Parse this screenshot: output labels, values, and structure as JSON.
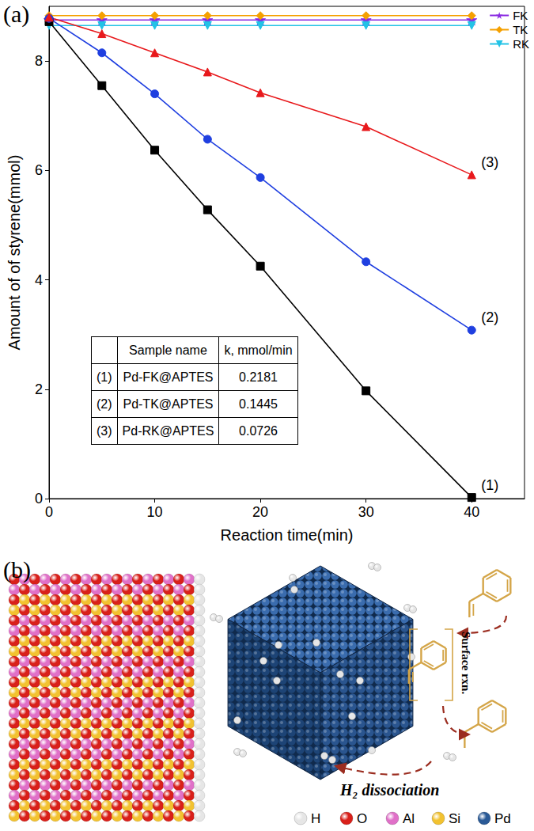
{
  "chart_data": {
    "type": "line",
    "panel_label": "(a)",
    "x_label": "Reaction time(min)",
    "y_label": "Amount of of styrene(mmol)",
    "x": [
      0,
      5,
      10,
      15,
      20,
      30,
      40
    ],
    "xlim": [
      0,
      45
    ],
    "xticks": [
      0,
      10,
      20,
      30,
      40
    ],
    "ylim": [
      0,
      9
    ],
    "yticks": [
      0,
      2,
      4,
      6,
      8
    ],
    "grid": false,
    "legend": "upper right",
    "series": [
      {
        "name": "FK",
        "color": "#8a2be2",
        "marker": "star",
        "values": [
          8.75,
          8.75,
          8.75,
          8.75,
          8.75,
          8.75,
          8.75
        ]
      },
      {
        "name": "TK",
        "color": "#f5a000",
        "marker": "diamond",
        "values": [
          8.83,
          8.83,
          8.83,
          8.83,
          8.83,
          8.83,
          8.83
        ]
      },
      {
        "name": "RK",
        "color": "#22c3e6",
        "marker": "triangle_down",
        "values": [
          8.65,
          8.65,
          8.65,
          8.65,
          8.65,
          8.65,
          8.65
        ]
      },
      {
        "name": "(1)",
        "color": "#000000",
        "marker": "square",
        "values": [
          8.72,
          7.55,
          6.37,
          5.28,
          4.25,
          1.97,
          0.02
        ]
      },
      {
        "name": "(2)",
        "color": "#1f3fe0",
        "marker": "circle",
        "values": [
          8.78,
          8.15,
          7.4,
          6.57,
          5.87,
          4.33,
          3.08
        ]
      },
      {
        "name": "(3)",
        "color": "#e8191c",
        "marker": "triangle",
        "values": [
          8.8,
          8.5,
          8.15,
          7.8,
          7.42,
          6.8,
          5.92
        ]
      }
    ],
    "table": {
      "header": [
        "Sample name",
        "k, mmol/min"
      ],
      "rows": [
        [
          "(1)",
          "Pd-FK@APTES",
          0.2181
        ],
        [
          "(2)",
          "Pd-TK@APTES",
          0.1445
        ],
        [
          "(3)",
          "Pd-RK@APTES",
          0.0726
        ]
      ]
    }
  },
  "diagram": {
    "panel_label": "(b)",
    "surface_label": "Surface rxn.",
    "h2_label": "H₂ dissociation",
    "legend": [
      {
        "label": "H",
        "color": "#e6e6e6"
      },
      {
        "label": "O",
        "color": "#d9201a"
      },
      {
        "label": "Al",
        "color": "#e070c8"
      },
      {
        "label": "Si",
        "color": "#f2c230"
      },
      {
        "label": "Pd",
        "color": "#2a5a96"
      }
    ]
  }
}
